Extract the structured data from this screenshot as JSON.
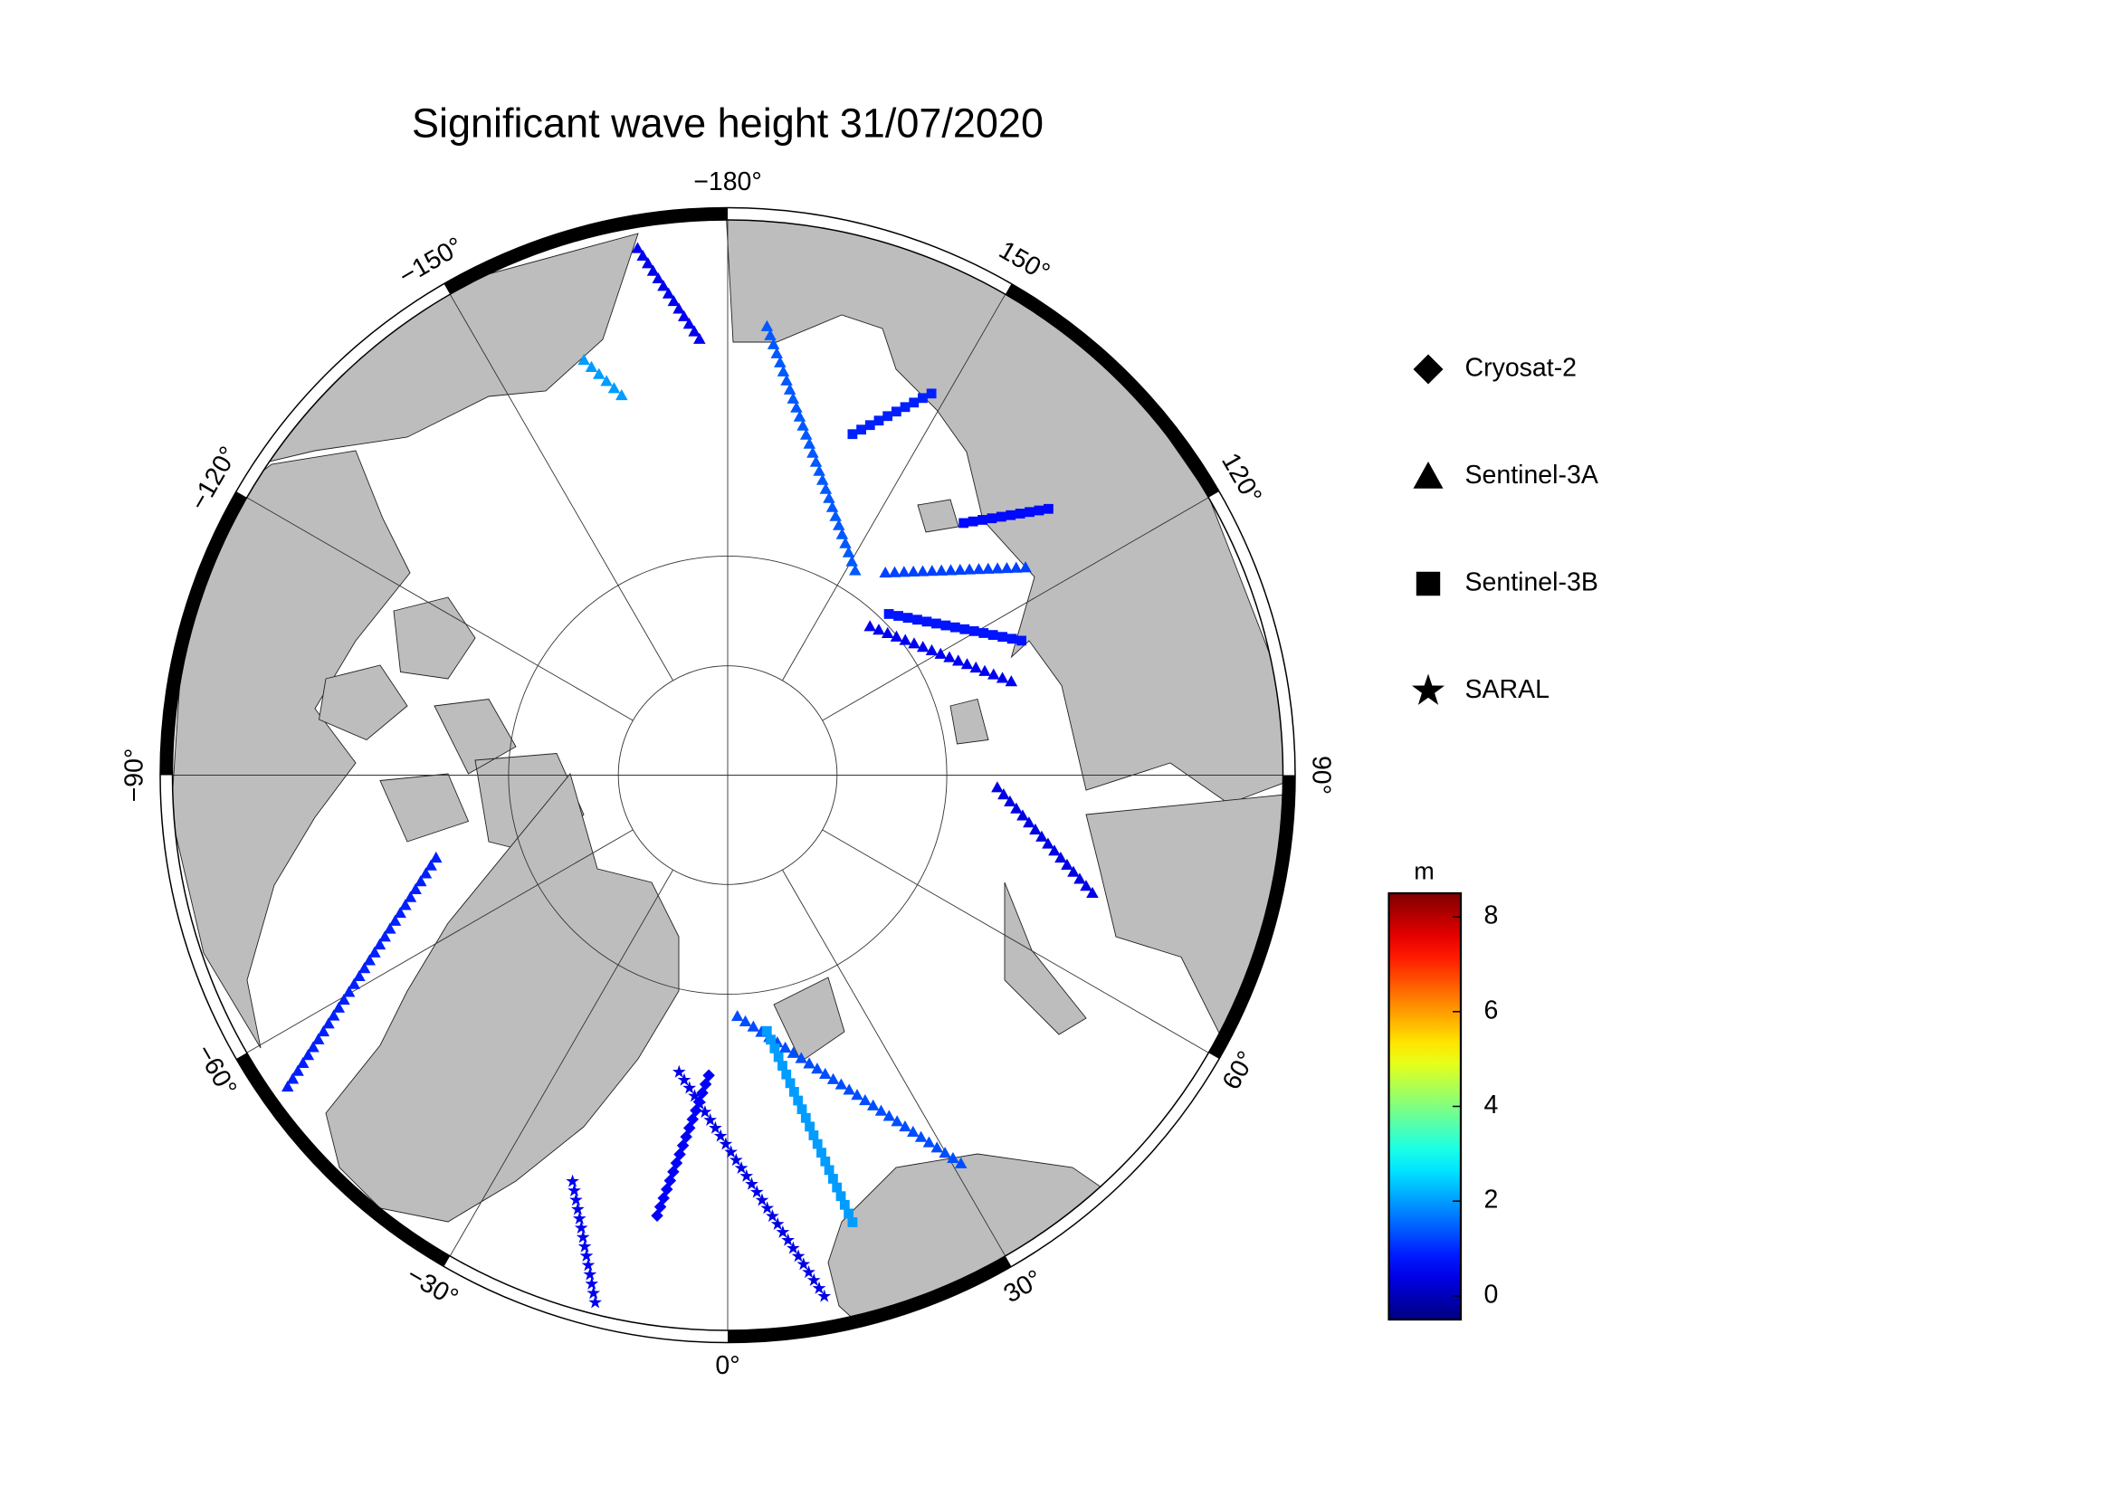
{
  "title": "Significant wave height 31/07/2020",
  "meridians": [
    {
      "value": -180,
      "label": "−180°"
    },
    {
      "value": -150,
      "label": "−150°"
    },
    {
      "value": -120,
      "label": "−120°"
    },
    {
      "value": -90,
      "label": "−90°"
    },
    {
      "value": -60,
      "label": "−60°"
    },
    {
      "value": -30,
      "label": "−30°"
    },
    {
      "value": 0,
      "label": "0°"
    },
    {
      "value": 30,
      "label": "30°"
    },
    {
      "value": 60,
      "label": "60°"
    },
    {
      "value": 90,
      "label": "90°"
    },
    {
      "value": 120,
      "label": "120°"
    },
    {
      "value": 150,
      "label": "150°"
    }
  ],
  "legend": {
    "items": [
      {
        "name": "Cryosat-2",
        "marker": "diamond"
      },
      {
        "name": "Sentinel-3A",
        "marker": "triangle"
      },
      {
        "name": "Sentinel-3B",
        "marker": "square"
      },
      {
        "name": "SARAL",
        "marker": "star"
      }
    ]
  },
  "colorbar": {
    "unit": "m",
    "clim": [
      -0.5,
      8.5
    ],
    "ticks": [
      0,
      2,
      4,
      6,
      8
    ],
    "colormap": "jet"
  },
  "tracks": [
    {
      "satellite": "Sentinel-3A",
      "start": [
        2.3,
        79.0
      ],
      "end": [
        31.0,
        69.5
      ],
      "value": 1.3
    },
    {
      "satellite": "Sentinel-3B",
      "start": [
        8.7,
        78.2
      ],
      "end": [
        15.6,
        69.0
      ],
      "value": 2.0
    },
    {
      "satellite": "SARAL",
      "start": [
        -9.3,
        76.3
      ],
      "end": [
        10.5,
        66.1
      ],
      "value": 0.4
    },
    {
      "satellite": "Cryosat-2",
      "start": [
        -3.6,
        76.3
      ],
      "end": [
        -9.1,
        69.8
      ],
      "value": 0.6
    },
    {
      "satellite": "SARAL",
      "start": [
        -20.9,
        70.3
      ],
      "end": [
        -14.1,
        65.5
      ],
      "value": 0.5
    },
    {
      "satellite": "Sentinel-3A",
      "start": [
        -74.2,
        76.2
      ],
      "end": [
        -54.7,
        65.7
      ],
      "value": 0.9
    },
    {
      "satellite": "Sentinel-3A",
      "start": [
        -170.3,
        65.9
      ],
      "end": [
        -176.3,
        70.2
      ],
      "value": 0.5
    },
    {
      "satellite": "Sentinel-3A",
      "start": [
        -160.9,
        70.1
      ],
      "end": [
        -164.4,
        72.1
      ],
      "value": 2.0
    },
    {
      "satellite": "Sentinel-3A",
      "start": [
        175.0,
        69.6
      ],
      "end": [
        148.1,
        79.0
      ],
      "value": 1.4
    },
    {
      "satellite": "Sentinel-3B",
      "start": [
        136.9,
        74.3
      ],
      "end": [
        129.7,
        71.1
      ],
      "value": 0.7
    },
    {
      "satellite": "Sentinel-3A",
      "start": [
        142.1,
        78.3
      ],
      "end": [
        124.9,
        73.5
      ],
      "value": 1.2
    },
    {
      "satellite": "Sentinel-3B",
      "start": [
        135.0,
        79.6
      ],
      "end": [
        114.6,
        75.3
      ],
      "value": 0.8
    },
    {
      "satellite": "Sentinel-3A",
      "start": [
        136.3,
        80.6
      ],
      "end": [
        108.3,
        76.4
      ],
      "value": 0.5
    },
    {
      "satellite": "Sentinel-3A",
      "start": [
        87.4,
        77.7
      ],
      "end": [
        72.1,
        72.6
      ],
      "value": 0.4
    },
    {
      "satellite": "Sentinel-3B",
      "start": [
        159.9,
        73.5
      ],
      "end": [
        151.9,
        70.4
      ],
      "value": 0.9
    }
  ]
}
